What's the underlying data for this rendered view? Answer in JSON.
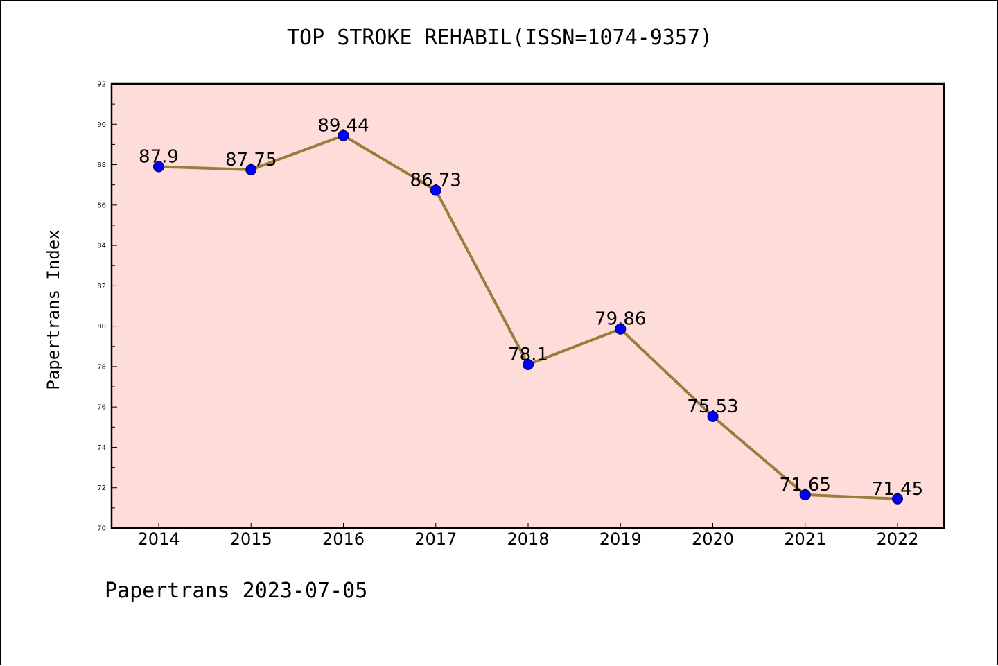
{
  "chart_data": {
    "type": "line",
    "title": "TOP STROKE REHABIL(ISSN=1074-9357)",
    "xlabel": "",
    "ylabel": "Papertrans Index",
    "categories": [
      "2014",
      "2015",
      "2016",
      "2017",
      "2018",
      "2019",
      "2020",
      "2021",
      "2022"
    ],
    "series": [
      {
        "values": [
          87.9,
          87.75,
          89.44,
          86.73,
          78.1,
          79.86,
          75.53,
          71.65,
          71.45
        ]
      }
    ],
    "data_labels": [
      "87.9",
      "87.75",
      "89.44",
      "86.73",
      "78.1",
      "79.86",
      "75.53",
      "71.65",
      "71.45"
    ],
    "ylim": [
      70,
      92
    ],
    "yticks": [
      "70",
      "72",
      "74",
      "76",
      "78",
      "80",
      "82",
      "84",
      "86",
      "88",
      "90",
      "92"
    ],
    "grid": false,
    "legend": "none",
    "colors": {
      "line": "#9a7d3a",
      "marker": "#0000ff",
      "plot_background": "#fddcd9"
    }
  },
  "footer": "Papertrans 2023-07-05"
}
